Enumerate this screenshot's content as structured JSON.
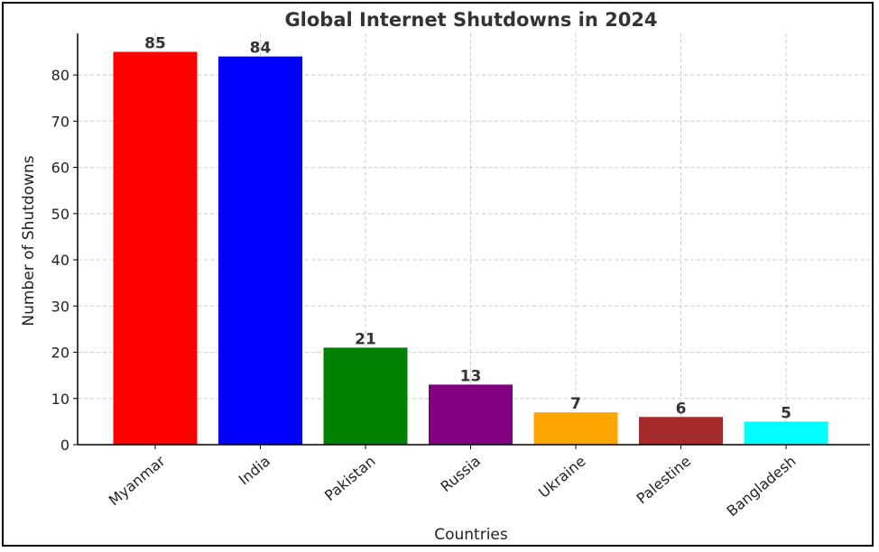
{
  "chart_data": {
    "type": "bar",
    "title": "Global Internet Shutdowns in 2024",
    "xlabel": "Countries",
    "ylabel": "Number of Shutdowns",
    "categories": [
      "Myanmar",
      "India",
      "Pakistan",
      "Russia",
      "Ukraine",
      "Palestine",
      "Bangladesh"
    ],
    "values": [
      85,
      84,
      21,
      13,
      7,
      6,
      5
    ],
    "data_labels": [
      "85",
      "84",
      "21",
      "13",
      "7",
      "6",
      "5"
    ],
    "colors": [
      "#ff0000",
      "#0000ff",
      "#008000",
      "#800080",
      "#ffa500",
      "#a52a2a",
      "#00ffff"
    ],
    "ylim": [
      0,
      89
    ],
    "yticks": [
      0,
      10,
      20,
      30,
      40,
      50,
      60,
      70,
      80
    ],
    "ytick_labels": [
      "0",
      "10",
      "20",
      "30",
      "40",
      "50",
      "60",
      "70",
      "80"
    ],
    "grid": true,
    "legend": "none"
  }
}
